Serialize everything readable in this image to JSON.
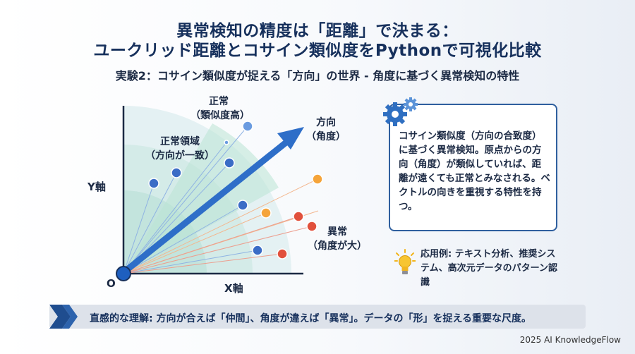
{
  "header": {
    "title_line1": "異常検知の精度は「距離」で決まる：",
    "title_line2": "ユークリッド距離とコサイン類似度をPythonで可視化比較",
    "subtitle": "実験2：コサイン類似度が捉える「方向」の世界 - 角度に基づく異常検知の特性"
  },
  "diagram": {
    "y_axis_label": "Y軸",
    "x_axis_label": "X軸",
    "origin_label": "O",
    "normal_label_line1": "正常",
    "normal_label_line2": "（類似度高）",
    "normal_region_line1": "正常領域",
    "normal_region_line2": "（方向が一致）",
    "direction_line1": "方向",
    "direction_line2": "（角度）",
    "anomaly_line1": "異常",
    "anomaly_line2": "（角度が大）",
    "colors": {
      "normal_point": "#3a6cc6",
      "anomaly_orange": "#f5a43a",
      "anomaly_red": "#e1503c",
      "arrow": "#2e6ec8",
      "region": "#bfe6dc"
    }
  },
  "info": {
    "description": "コサイン類似度（方向の合致度）に基づく異常検知。原点からの方向（角度）が類似していれば、距離が遠くても正常とみなされる。ベクトルの向きを重視する特性を持つ。",
    "application": "応用例: テキスト分析、推奨システム、高次元データのパターン認識",
    "gear_icon": "gear-icon",
    "bulb_icon": "lightbulb-icon"
  },
  "banner": {
    "text": "直感的な理解: 方向が合えば「仲間」、角度が違えば「異常」。データの「形」を捉える重要な尺度。"
  },
  "footer": {
    "credit": "2025 AI KnowledgeFlow"
  }
}
